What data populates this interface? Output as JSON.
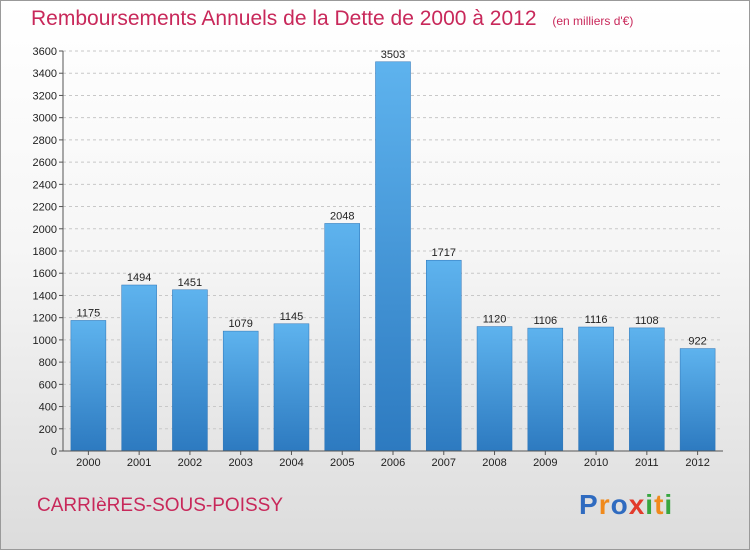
{
  "chart_data": {
    "type": "bar",
    "title": "Remboursements Annuels de la Dette de 2000 à 2012",
    "subtitle": "(en milliers d'€)",
    "categories": [
      "2000",
      "2001",
      "2002",
      "2003",
      "2004",
      "2005",
      "2006",
      "2007",
      "2008",
      "2009",
      "2010",
      "2011",
      "2012"
    ],
    "values": [
      1175,
      1494,
      1451,
      1079,
      1145,
      2048,
      3503,
      1717,
      1120,
      1106,
      1116,
      1108,
      922
    ],
    "data_labels": [
      "1175",
      "1494",
      "1451",
      "1079",
      "1145",
      "2048",
      "3503",
      "1717",
      "1120",
      "1106",
      "1116",
      "1108",
      "922"
    ],
    "ylim": [
      0,
      3600
    ],
    "yticks": [
      "0",
      "200",
      "400",
      "600",
      "800",
      "1000",
      "1200",
      "1400",
      "1600",
      "1800",
      "2000",
      "2200",
      "2400",
      "2600",
      "2800",
      "3000",
      "3200",
      "3400",
      "3600"
    ],
    "grid": true,
    "bar_color": "#4d9fdc"
  },
  "footer": {
    "commune": "CARRIèRES-SOUS-POISSY",
    "logo_letters": [
      "P",
      "r",
      "o",
      "x",
      "i",
      "t",
      "i"
    ],
    "logo_colors": [
      "#2f6bc0",
      "#f08a1c",
      "#2f6bc0",
      "#e23b2c",
      "#37a640",
      "#f08a1c",
      "#37a640"
    ]
  }
}
